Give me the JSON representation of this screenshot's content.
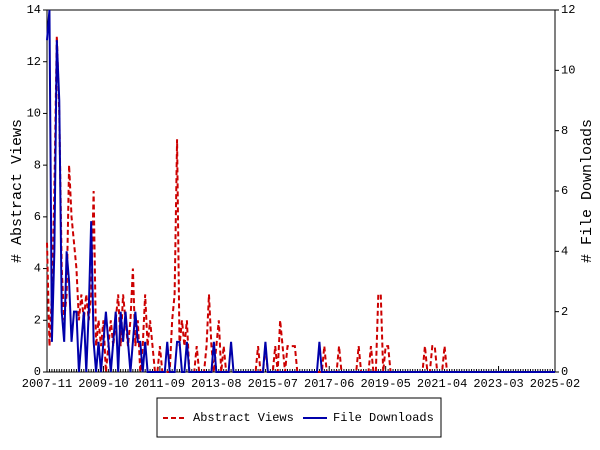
{
  "chart_data": {
    "type": "line",
    "y_label": "# Abstract Views",
    "y2_label": "# File Downloads",
    "categories": [
      "2007-11",
      null,
      null,
      null,
      null,
      null,
      null,
      null,
      null,
      null,
      null,
      null,
      null,
      null,
      null,
      null,
      null,
      null,
      null,
      null,
      null,
      null,
      null,
      "2009-10",
      null,
      null,
      null,
      null,
      null,
      null,
      null,
      null,
      null,
      null,
      null,
      null,
      null,
      null,
      null,
      null,
      null,
      null,
      null,
      null,
      null,
      null,
      "2011-09",
      null,
      null,
      null,
      null,
      null,
      null,
      null,
      null,
      null,
      null,
      null,
      null,
      null,
      null,
      null,
      null,
      null,
      null,
      null,
      null,
      null,
      null,
      "2013-08",
      null,
      null,
      null,
      null,
      null,
      null,
      null,
      null,
      null,
      null,
      null,
      null,
      null,
      null,
      null,
      null,
      null,
      null,
      null,
      null,
      null,
      null,
      "2015-07",
      null,
      null,
      null,
      null,
      null,
      null,
      null,
      null,
      null,
      null,
      null,
      null,
      null,
      null,
      null,
      null,
      null,
      null,
      null,
      null,
      null,
      null,
      "2017-06",
      null,
      null,
      null,
      null,
      null,
      null,
      null,
      null,
      null,
      null,
      null,
      null,
      null,
      null,
      null,
      null,
      null,
      null,
      null,
      null,
      null,
      null,
      "2019-05",
      null,
      null,
      null,
      null,
      null,
      null,
      null,
      null,
      null,
      null,
      null,
      null,
      null,
      null,
      null,
      null,
      null,
      null,
      null,
      null,
      null,
      null,
      "2021-04",
      null,
      null,
      null,
      null,
      null,
      null,
      null,
      null,
      null,
      null,
      null,
      null,
      null,
      null,
      null,
      null,
      null,
      null,
      null,
      null,
      null,
      null,
      "2023-03",
      null,
      null,
      null,
      null,
      null,
      null,
      null,
      null,
      null,
      null,
      null,
      null,
      null,
      null,
      null,
      null,
      null,
      null,
      null,
      null,
      null,
      null,
      "2025-02"
    ],
    "series": [
      {
        "name": "Abstract Views",
        "color": "#cc0000",
        "dashed": true,
        "axis": "y",
        "values": [
          5,
          1,
          3,
          7,
          13,
          10,
          4,
          2,
          3,
          8,
          6,
          5,
          4,
          2,
          3,
          2,
          3,
          2,
          3,
          7,
          1,
          2,
          1,
          2,
          0,
          1,
          2,
          1,
          2,
          3,
          1,
          3,
          2,
          1,
          2,
          4,
          1,
          2,
          0,
          1,
          3,
          1,
          2,
          1,
          0,
          0,
          1,
          0,
          0,
          0,
          0,
          2,
          3,
          9,
          1,
          2,
          1,
          2,
          0,
          0,
          0,
          1,
          0,
          0,
          0,
          1,
          3,
          1,
          0,
          1,
          2,
          0,
          1,
          0,
          0,
          0,
          0,
          0,
          0,
          0,
          0,
          0,
          0,
          0,
          0,
          0,
          1,
          0,
          0,
          1,
          0,
          0,
          0,
          1,
          0,
          2,
          1,
          0,
          1,
          1,
          1,
          1,
          0,
          0,
          0,
          0,
          0,
          0,
          0,
          0,
          0,
          0,
          0,
          1,
          0,
          0,
          0,
          0,
          0,
          1,
          0,
          0,
          0,
          0,
          0,
          0,
          0,
          1,
          0,
          0,
          0,
          0,
          1,
          0,
          0,
          3,
          3,
          0,
          1,
          1,
          0,
          0,
          0,
          0,
          0,
          0,
          0,
          0,
          0,
          0,
          0,
          0,
          0,
          0,
          1,
          0,
          0,
          1,
          1,
          0,
          0,
          0,
          1,
          0,
          0,
          0,
          0,
          0,
          0,
          0,
          0,
          0,
          0,
          0,
          0,
          0,
          0,
          0,
          0,
          0,
          0,
          0,
          0,
          0,
          0,
          0,
          0,
          0,
          0,
          0,
          0,
          0,
          0,
          0,
          0,
          0,
          0,
          0,
          0,
          0,
          0,
          0,
          0,
          0,
          0,
          0,
          0,
          0
        ]
      },
      {
        "name": "File Downloads",
        "color": "#0000aa",
        "dashed": false,
        "axis": "y2",
        "values": [
          11,
          12,
          1,
          4,
          11,
          9,
          2,
          1,
          4,
          3,
          1,
          2,
          2,
          0,
          1,
          2,
          0,
          2,
          5,
          1,
          0,
          1,
          0,
          1,
          2,
          1,
          0,
          1,
          2,
          0,
          2,
          1,
          2,
          1,
          0,
          1,
          2,
          1,
          1,
          0,
          1,
          0,
          0,
          0,
          0,
          0,
          0,
          0,
          0,
          1,
          0,
          0,
          0,
          1,
          1,
          0,
          0,
          1,
          0,
          0,
          0,
          0,
          0,
          0,
          0,
          0,
          0,
          0,
          1,
          0,
          0,
          0,
          0,
          0,
          0,
          1,
          0,
          0,
          0,
          0,
          0,
          0,
          0,
          0,
          0,
          0,
          0,
          0,
          0,
          1,
          0,
          0,
          0,
          0,
          0,
          0,
          0,
          0,
          0,
          0,
          0,
          0,
          0,
          0,
          0,
          0,
          0,
          0,
          0,
          0,
          0,
          1,
          0,
          0,
          0,
          0,
          0,
          0,
          0,
          0,
          0,
          0,
          0,
          0,
          0,
          0,
          0,
          0,
          0,
          0,
          0,
          0,
          0,
          0,
          0,
          0,
          0,
          0,
          0,
          0,
          0,
          0,
          0,
          0,
          0,
          0,
          0,
          0,
          0,
          0,
          0,
          0,
          0,
          0,
          0,
          0,
          0,
          0,
          0,
          0,
          0,
          0,
          0,
          0,
          0,
          0,
          0,
          0,
          0,
          0,
          0,
          0,
          0,
          0,
          0,
          0,
          0,
          0,
          0,
          0,
          0,
          0,
          0,
          0,
          0,
          0,
          0,
          0,
          0,
          0,
          0,
          0,
          0,
          0,
          0,
          0,
          0,
          0,
          0,
          0,
          0,
          0,
          0,
          0,
          0,
          0,
          0,
          0
        ]
      }
    ],
    "ylim": [
      0,
      14
    ],
    "yticks": [
      0,
      2,
      4,
      6,
      8,
      10,
      12,
      14
    ],
    "y2lim": [
      0,
      12
    ],
    "y2ticks": [
      0,
      2,
      4,
      6,
      8,
      10,
      12
    ],
    "legend": "bottom"
  }
}
